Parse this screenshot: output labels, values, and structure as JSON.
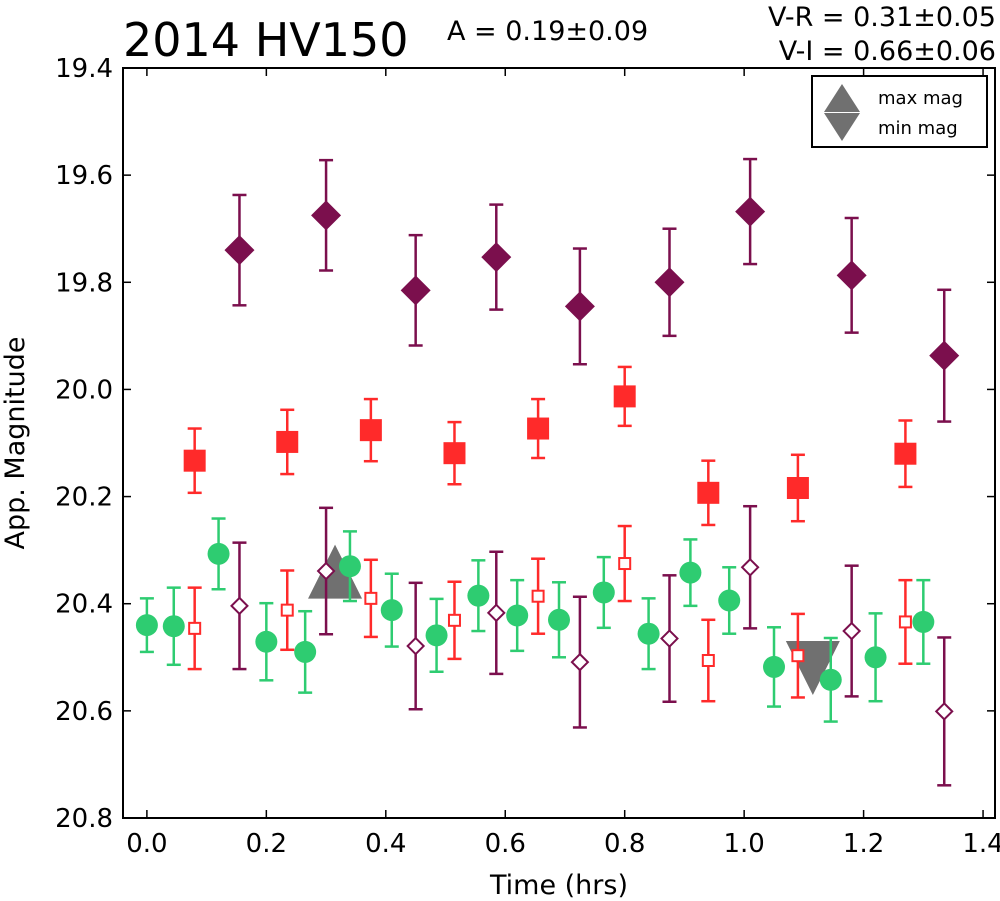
{
  "chart_data": {
    "type": "scatter",
    "title": "2014 HV150",
    "annotations": {
      "amplitude": "A  = 0.19±0.09",
      "v_r": "V-R = 0.31±0.05",
      "v_i": "V-I  = 0.66±0.06"
    },
    "xlabel": "Time (hrs)",
    "ylabel": "App. Magnitude",
    "xlim": [
      -0.04,
      1.42
    ],
    "ylim": [
      20.8,
      19.4
    ],
    "y_inverted": true,
    "x_ticks": [
      "0.0",
      "0.2",
      "0.4",
      "0.6",
      "0.8",
      "1.0",
      "1.2",
      "1.4"
    ],
    "y_ticks": [
      "19.4",
      "19.6",
      "19.8",
      "20.0",
      "20.2",
      "20.4",
      "20.6",
      "20.8"
    ],
    "grid": false,
    "legend_position": "top-right",
    "legend": [
      {
        "label": "max mag",
        "marker": "triangle-up"
      },
      {
        "label": "min mag",
        "marker": "triangle-down"
      }
    ],
    "colors": {
      "green": "#2ecc71",
      "red": "#ff2a2a",
      "purple": "#7b0f4d",
      "extrema": "#707070"
    },
    "series": [
      {
        "marker": "diamond-filled",
        "color": "#7b0f4d",
        "points": [
          {
            "x": 0.155,
            "y": 19.74,
            "err": 0.103
          },
          {
            "x": 0.3,
            "y": 19.675,
            "err": 0.103
          },
          {
            "x": 0.45,
            "y": 19.815,
            "err": 0.103
          },
          {
            "x": 0.585,
            "y": 19.753,
            "err": 0.098
          },
          {
            "x": 0.725,
            "y": 19.845,
            "err": 0.108
          },
          {
            "x": 0.875,
            "y": 19.8,
            "err": 0.1
          },
          {
            "x": 1.01,
            "y": 19.668,
            "err": 0.098
          },
          {
            "x": 1.18,
            "y": 19.787,
            "err": 0.107
          },
          {
            "x": 1.335,
            "y": 19.937,
            "err": 0.123
          }
        ]
      },
      {
        "marker": "square-filled",
        "color": "#ff2a2a",
        "points": [
          {
            "x": 0.08,
            "y": 20.133,
            "err": 0.06
          },
          {
            "x": 0.235,
            "y": 20.098,
            "err": 0.06
          },
          {
            "x": 0.375,
            "y": 20.076,
            "err": 0.058
          },
          {
            "x": 0.515,
            "y": 20.119,
            "err": 0.058
          },
          {
            "x": 0.655,
            "y": 20.073,
            "err": 0.055
          },
          {
            "x": 0.8,
            "y": 20.013,
            "err": 0.055
          },
          {
            "x": 0.94,
            "y": 20.193,
            "err": 0.06
          },
          {
            "x": 1.09,
            "y": 20.184,
            "err": 0.062
          },
          {
            "x": 1.27,
            "y": 20.12,
            "err": 0.062
          }
        ]
      },
      {
        "marker": "circle-filled",
        "color": "#2ecc71",
        "points": [
          {
            "x": 0.0,
            "y": 20.44,
            "err": 0.05
          },
          {
            "x": 0.045,
            "y": 20.442,
            "err": 0.072
          },
          {
            "x": 0.12,
            "y": 20.307,
            "err": 0.066
          },
          {
            "x": 0.2,
            "y": 20.471,
            "err": 0.072
          },
          {
            "x": 0.265,
            "y": 20.49,
            "err": 0.076
          },
          {
            "x": 0.34,
            "y": 20.33,
            "err": 0.065
          },
          {
            "x": 0.41,
            "y": 20.412,
            "err": 0.068
          },
          {
            "x": 0.485,
            "y": 20.459,
            "err": 0.068
          },
          {
            "x": 0.555,
            "y": 20.385,
            "err": 0.066
          },
          {
            "x": 0.62,
            "y": 20.422,
            "err": 0.066
          },
          {
            "x": 0.69,
            "y": 20.43,
            "err": 0.07
          },
          {
            "x": 0.765,
            "y": 20.379,
            "err": 0.066
          },
          {
            "x": 0.84,
            "y": 20.456,
            "err": 0.066
          },
          {
            "x": 0.91,
            "y": 20.342,
            "err": 0.062
          },
          {
            "x": 0.975,
            "y": 20.394,
            "err": 0.062
          },
          {
            "x": 1.05,
            "y": 20.518,
            "err": 0.074
          },
          {
            "x": 1.145,
            "y": 20.542,
            "err": 0.078
          },
          {
            "x": 1.22,
            "y": 20.5,
            "err": 0.082
          },
          {
            "x": 1.3,
            "y": 20.434,
            "err": 0.078
          }
        ]
      },
      {
        "marker": "square-open",
        "color": "#ff2a2a",
        "points": [
          {
            "x": 0.08,
            "y": 20.446,
            "err": 0.076
          },
          {
            "x": 0.235,
            "y": 20.412,
            "err": 0.074
          },
          {
            "x": 0.375,
            "y": 20.39,
            "err": 0.072
          },
          {
            "x": 0.515,
            "y": 20.431,
            "err": 0.072
          },
          {
            "x": 0.655,
            "y": 20.386,
            "err": 0.07
          },
          {
            "x": 0.8,
            "y": 20.325,
            "err": 0.07
          },
          {
            "x": 0.94,
            "y": 20.506,
            "err": 0.076
          },
          {
            "x": 1.09,
            "y": 20.497,
            "err": 0.078
          },
          {
            "x": 1.27,
            "y": 20.434,
            "err": 0.078
          }
        ]
      },
      {
        "marker": "diamond-open",
        "color": "#7b0f4d",
        "points": [
          {
            "x": 0.155,
            "y": 20.404,
            "err": 0.118
          },
          {
            "x": 0.3,
            "y": 20.339,
            "err": 0.118
          },
          {
            "x": 0.45,
            "y": 20.479,
            "err": 0.118
          },
          {
            "x": 0.585,
            "y": 20.417,
            "err": 0.114
          },
          {
            "x": 0.725,
            "y": 20.509,
            "err": 0.122
          },
          {
            "x": 0.875,
            "y": 20.465,
            "err": 0.118
          },
          {
            "x": 1.01,
            "y": 20.332,
            "err": 0.114
          },
          {
            "x": 1.18,
            "y": 20.451,
            "err": 0.122
          },
          {
            "x": 1.335,
            "y": 20.601,
            "err": 0.138
          }
        ]
      }
    ],
    "extrema": [
      {
        "label": "max mag",
        "marker": "triangle-up",
        "x": 0.315,
        "y": 20.34
      },
      {
        "label": "min mag",
        "marker": "triangle-down",
        "x": 1.115,
        "y": 20.52
      }
    ]
  }
}
